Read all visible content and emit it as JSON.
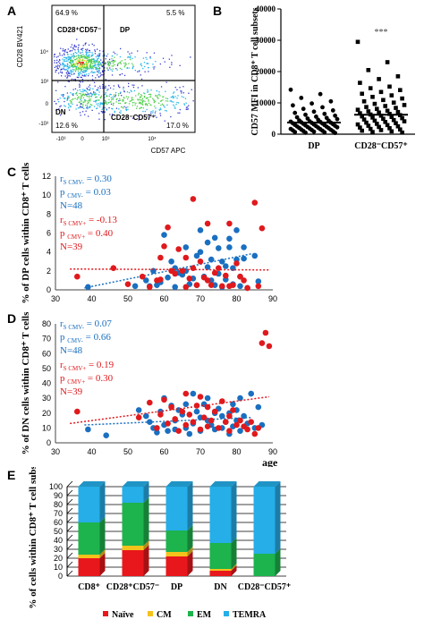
{
  "figure": {
    "panel_letters": [
      "A",
      "B",
      "C",
      "D",
      "E"
    ]
  },
  "panel_a": {
    "ylabel": "CD28 BV421",
    "xlabel": "CD57 APC",
    "y_ticks": [
      "10⁴",
      "10³",
      "0",
      "-10³"
    ],
    "x_ticks": [
      "-10³",
      "0",
      "10³",
      "10⁴"
    ],
    "quadrants": {
      "tl_pct": "64.9 %",
      "tl_name": "CD28⁺CD57⁻",
      "tr_pct": "5.5 %",
      "tr_name": "DP",
      "bl_pct": "12.6 %",
      "bl_name": "DN",
      "br_pct": "17.0 %",
      "br_name": "CD28⁻CD57⁺"
    }
  },
  "chart_data": [
    {
      "id": "B",
      "type": "scatter",
      "ylabel": "CD57 MFI in CD8⁺ T cell subsets",
      "categories": [
        "DP",
        "CD28⁻CD57⁺"
      ],
      "ylim": [
        0,
        40000
      ],
      "y_ticks": [
        "0",
        "10000",
        "20000",
        "30000",
        "40000"
      ],
      "annotation": "***",
      "series": [
        {
          "values": [
            14200,
            12800,
            11600,
            10500,
            9800,
            9200,
            8600,
            8100,
            7600,
            7200,
            6800,
            6500,
            6200,
            5900,
            5600,
            5400,
            5200,
            5000,
            4800,
            4600,
            4400,
            4300,
            4100,
            4000,
            3900,
            3800,
            3700,
            3600,
            3500,
            3400,
            3300,
            3200,
            3100,
            3000,
            2900,
            2800,
            2700,
            2600,
            2500,
            2400,
            2300,
            2200,
            2100,
            2000,
            1900,
            1800,
            1700,
            1600,
            1500,
            1400,
            1300,
            1200,
            1100,
            1000,
            900,
            800,
            700,
            600,
            500,
            400
          ],
          "median": 3700
        },
        {
          "values": [
            29500,
            23000,
            20500,
            18500,
            17600,
            16400,
            15200,
            14700,
            14100,
            13500,
            12900,
            12400,
            11900,
            11400,
            10900,
            10500,
            10100,
            9700,
            9300,
            9000,
            8700,
            8400,
            8100,
            7800,
            7500,
            7300,
            7100,
            6900,
            6700,
            6500,
            6300,
            6100,
            5900,
            5700,
            5500,
            5300,
            5100,
            4900,
            4700,
            4500,
            4300,
            4100,
            3900,
            3700,
            3500,
            3300,
            3100,
            2900,
            2700,
            2500,
            2300,
            2100,
            1900,
            1700,
            1500,
            1300,
            1100,
            900,
            700,
            500
          ],
          "median": 6200
        }
      ]
    },
    {
      "id": "C",
      "type": "scatter",
      "ylabel": "% of DP cells within CD8⁺ T cells",
      "xlim": [
        30,
        90
      ],
      "ylim": [
        0,
        12
      ],
      "x_ticks": [
        "30",
        "40",
        "50",
        "60",
        "70",
        "80",
        "90"
      ],
      "y_ticks": [
        "0",
        "2",
        "4",
        "6",
        "8",
        "10",
        "12"
      ],
      "annotations": {
        "cmv_neg": {
          "r": "0.30",
          "p": "0.03",
          "n": "N=48",
          "color": "#1a6fc0"
        },
        "cmv_pos": {
          "r": "-0.13",
          "p": "0.40",
          "n": "N=39",
          "color": "#e0191d"
        }
      },
      "series": [
        {
          "color": "#1a6fc0",
          "points": [
            [
              39,
              0.3
            ],
            [
              52,
              0.4
            ],
            [
              55,
              1.0
            ],
            [
              56,
              0.4
            ],
            [
              57,
              2.0
            ],
            [
              58,
              0.5
            ],
            [
              59,
              0.8
            ],
            [
              60,
              5.8
            ],
            [
              61,
              1.3
            ],
            [
              62,
              3.0
            ],
            [
              63,
              2.3
            ],
            [
              63,
              0.3
            ],
            [
              64,
              1.8
            ],
            [
              65,
              1.6
            ],
            [
              66,
              4.5
            ],
            [
              66,
              2.0
            ],
            [
              67,
              0.6
            ],
            [
              68,
              1.2
            ],
            [
              69,
              3.6
            ],
            [
              69,
              0.5
            ],
            [
              70,
              6.3
            ],
            [
              70,
              4.0
            ],
            [
              71,
              1.4
            ],
            [
              72,
              5.0
            ],
            [
              72,
              2.4
            ],
            [
              73,
              3.2
            ],
            [
              73,
              1.0
            ],
            [
              74,
              5.5
            ],
            [
              74,
              0.5
            ],
            [
              75,
              4.4
            ],
            [
              75,
              1.7
            ],
            [
              76,
              3.0
            ],
            [
              76,
              0.3
            ],
            [
              77,
              2.5
            ],
            [
              77,
              1.1
            ],
            [
              78,
              4.5
            ],
            [
              78,
              5.4
            ],
            [
              79,
              2.3
            ],
            [
              79,
              0.6
            ],
            [
              80,
              6.3
            ],
            [
              80,
              3.2
            ],
            [
              81,
              1.4
            ],
            [
              81,
              0.4
            ],
            [
              82,
              4.5
            ],
            [
              82,
              3.3
            ],
            [
              83,
              0.2
            ],
            [
              85,
              3.6
            ],
            [
              86,
              0.9
            ]
          ],
          "trend": [
            [
              38,
              0.2
            ],
            [
              84,
              3.8
            ]
          ]
        },
        {
          "color": "#e0191d",
          "points": [
            [
              36,
              1.4
            ],
            [
              46,
              2.3
            ],
            [
              50,
              0.6
            ],
            [
              54,
              1.4
            ],
            [
              56,
              0.3
            ],
            [
              58,
              1.0
            ],
            [
              59,
              1.1
            ],
            [
              59,
              3.4
            ],
            [
              60,
              4.6
            ],
            [
              61,
              6.6
            ],
            [
              62,
              2.0
            ],
            [
              63,
              1.7
            ],
            [
              64,
              4.3
            ],
            [
              65,
              2.0
            ],
            [
              66,
              3.4
            ],
            [
              66,
              0.3
            ],
            [
              67,
              1.2
            ],
            [
              68,
              9.6
            ],
            [
              68,
              2.3
            ],
            [
              69,
              0.5
            ],
            [
              70,
              3.0
            ],
            [
              71,
              1.3
            ],
            [
              72,
              7.0
            ],
            [
              72,
              1.0
            ],
            [
              73,
              0.5
            ],
            [
              74,
              1.8
            ],
            [
              75,
              2.3
            ],
            [
              76,
              0.4
            ],
            [
              77,
              1.5
            ],
            [
              78,
              7.0
            ],
            [
              78,
              0.4
            ],
            [
              79,
              0.5
            ],
            [
              80,
              2.8
            ],
            [
              81,
              1.4
            ],
            [
              82,
              1.0
            ],
            [
              83,
              0.2
            ],
            [
              85,
              9.2
            ],
            [
              86,
              0.4
            ],
            [
              87,
              6.5
            ]
          ],
          "trend": [
            [
              34,
              2.2
            ],
            [
              89,
              2.1
            ]
          ]
        }
      ]
    },
    {
      "id": "D",
      "type": "scatter",
      "ylabel": "% of DN cells within CD8⁺ T cells",
      "xlabel": "age",
      "xlim": [
        30,
        90
      ],
      "ylim": [
        0,
        80
      ],
      "x_ticks": [
        "30",
        "40",
        "50",
        "60",
        "70",
        "80",
        "90"
      ],
      "y_ticks": [
        "0",
        "10",
        "20",
        "30",
        "40",
        "50",
        "60",
        "70",
        "80"
      ],
      "annotations": {
        "cmv_neg": {
          "r": "0.07",
          "p": "0.66",
          "n": "N=48",
          "color": "#1a6fc0"
        },
        "cmv_pos": {
          "r": "0.19",
          "p": "0.30",
          "n": "N=39",
          "color": "#e0191d"
        }
      },
      "series": [
        {
          "color": "#1a6fc0",
          "points": [
            [
              39,
              9
            ],
            [
              44,
              5
            ],
            [
              53,
              22
            ],
            [
              55,
              18
            ],
            [
              56,
              14
            ],
            [
              57,
              10
            ],
            [
              58,
              7
            ],
            [
              59,
              21
            ],
            [
              60,
              12
            ],
            [
              60,
              30
            ],
            [
              61,
              8
            ],
            [
              62,
              25
            ],
            [
              63,
              15
            ],
            [
              63,
              9
            ],
            [
              64,
              22
            ],
            [
              65,
              19
            ],
            [
              66,
              26
            ],
            [
              66,
              10
            ],
            [
              67,
              6
            ],
            [
              68,
              13
            ],
            [
              68,
              33
            ],
            [
              69,
              21
            ],
            [
              70,
              17
            ],
            [
              70,
              8
            ],
            [
              71,
              26
            ],
            [
              72,
              15
            ],
            [
              72,
              30
            ],
            [
              73,
              12
            ],
            [
              74,
              9
            ],
            [
              74,
              20
            ],
            [
              75,
              23
            ],
            [
              76,
              18
            ],
            [
              76,
              10
            ],
            [
              77,
              14
            ],
            [
              78,
              20
            ],
            [
              78,
              6
            ],
            [
              79,
              26
            ],
            [
              79,
              11
            ],
            [
              80,
              15
            ],
            [
              80,
              22
            ],
            [
              81,
              30
            ],
            [
              81,
              8
            ],
            [
              82,
              18
            ],
            [
              83,
              13
            ],
            [
              84,
              33
            ],
            [
              85,
              10
            ],
            [
              86,
              24
            ],
            [
              87,
              12
            ]
          ],
          "trend": [
            [
              38,
              12
            ],
            [
              84,
              17
            ]
          ]
        },
        {
          "color": "#e0191d",
          "points": [
            [
              36,
              21
            ],
            [
              53,
              17
            ],
            [
              56,
              27
            ],
            [
              58,
              10
            ],
            [
              59,
              19
            ],
            [
              60,
              29
            ],
            [
              61,
              13
            ],
            [
              62,
              24
            ],
            [
              63,
              16
            ],
            [
              64,
              8
            ],
            [
              65,
              21
            ],
            [
              66,
              33
            ],
            [
              66,
              12
            ],
            [
              67,
              19
            ],
            [
              68,
              14
            ],
            [
              69,
              25
            ],
            [
              70,
              9
            ],
            [
              70,
              31
            ],
            [
              71,
              17
            ],
            [
              72,
              11
            ],
            [
              72,
              24
            ],
            [
              73,
              15
            ],
            [
              74,
              21
            ],
            [
              75,
              10
            ],
            [
              76,
              28
            ],
            [
              77,
              14
            ],
            [
              78,
              18
            ],
            [
              78,
              8
            ],
            [
              79,
              22
            ],
            [
              80,
              12
            ],
            [
              81,
              15
            ],
            [
              82,
              11
            ],
            [
              83,
              9
            ],
            [
              84,
              14
            ],
            [
              85,
              6
            ],
            [
              86,
              10
            ],
            [
              87,
              67
            ],
            [
              88,
              74
            ],
            [
              89,
              65
            ]
          ],
          "trend": [
            [
              34,
              13
            ],
            [
              89,
              31
            ]
          ]
        }
      ]
    },
    {
      "id": "E",
      "type": "bar",
      "ylabel": "% of cells within CD8⁺ T cell subsets",
      "categories": [
        "CD8⁺",
        "CD28⁺CD57⁻",
        "DP",
        "DN",
        "CD28⁻CD57⁺"
      ],
      "ylim": [
        0,
        100
      ],
      "y_ticks": [
        "0",
        "10",
        "20",
        "30",
        "40",
        "50",
        "60",
        "70",
        "80",
        "90",
        "100"
      ],
      "series": [
        {
          "name": "Naïve",
          "color": "#e8171b",
          "values": [
            20,
            29,
            22,
            6,
            0
          ]
        },
        {
          "name": "CM",
          "color": "#f5c21b",
          "values": [
            4,
            5,
            5,
            2,
            0
          ]
        },
        {
          "name": "EM",
          "color": "#1db34d",
          "values": [
            36,
            48,
            24,
            29,
            25
          ]
        },
        {
          "name": "TEMRA",
          "color": "#25aee8",
          "values": [
            40,
            18,
            49,
            63,
            75
          ]
        }
      ]
    }
  ]
}
